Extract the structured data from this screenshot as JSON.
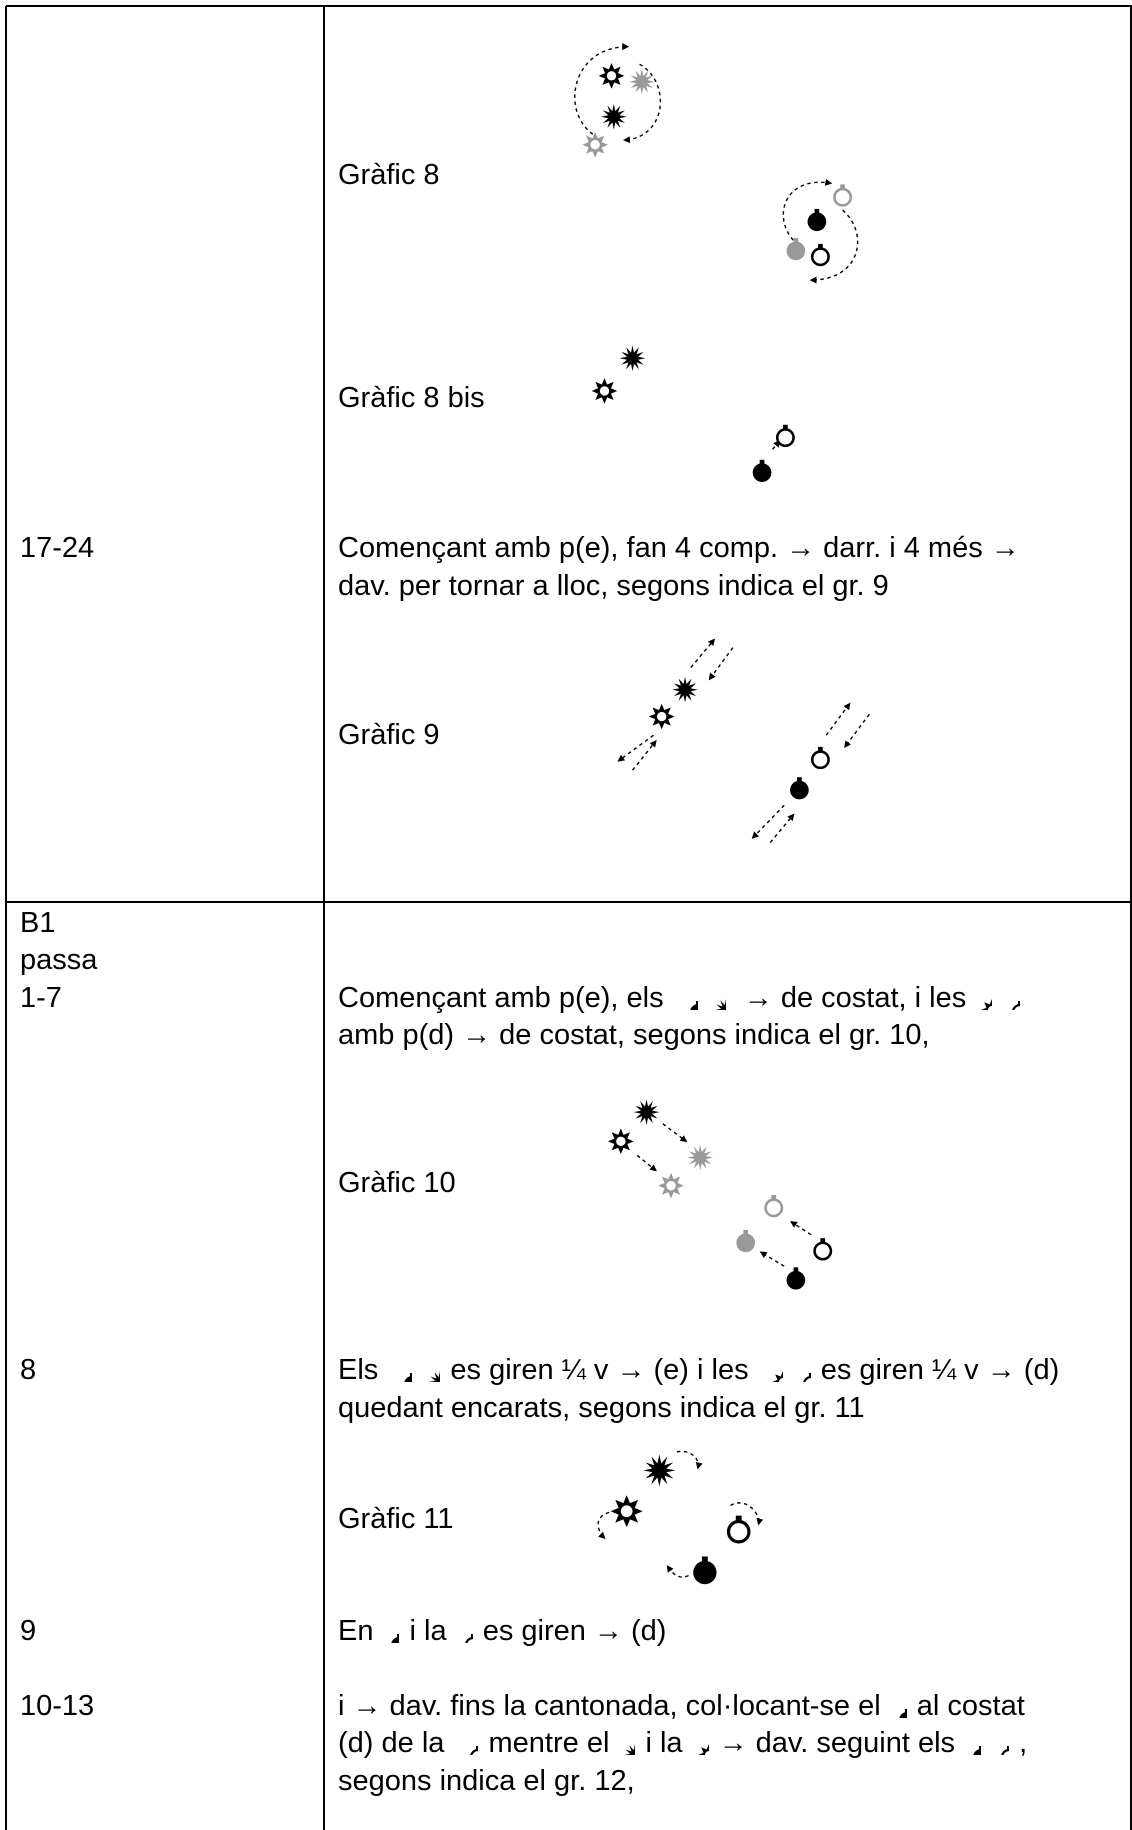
{
  "graphics": [
    "Gràfic 8",
    "Gràfic 8 bis",
    "Gràfic 9",
    "Gràfic 10",
    "Gràfic 11"
  ],
  "rows": [
    {
      "count": [
        "17-24"
      ],
      "lines": [
        [
          "Començant amb p(e), fan 4 comp. → darr. i 4 més →"
        ],
        [
          "dav. per tornar a lloc, segons indica el gr. 9"
        ]
      ]
    },
    {
      "count": [
        "B1",
        "passa",
        "1-7"
      ],
      "lines": [
        [
          "Començant amb p(e), els",
          "→ de costat, i les"
        ],
        [
          "amb p(d) → de costat, segons indica el gr. 10,"
        ]
      ]
    },
    {
      "count": [
        "8"
      ],
      "lines": [
        [
          "Els",
          "es giren ¼ v → (e) i les",
          "es giren ¼ v → (d)"
        ],
        [
          "quedant encarats, segons indica el gr. 11"
        ]
      ]
    },
    {
      "count": [
        "9"
      ],
      "lines": [
        [
          "En",
          "i la",
          "es giren → (d)"
        ]
      ]
    },
    {
      "count": [
        "10-13"
      ],
      "lines": [
        [
          "i → dav. fins la cantonada, col·locant-se el",
          "al costat"
        ],
        [
          "(d) de la",
          "mentre el",
          "i la",
          "→ dav. seguint els",
          ","
        ],
        [
          "segons indica el gr. 12,"
        ]
      ]
    }
  ]
}
